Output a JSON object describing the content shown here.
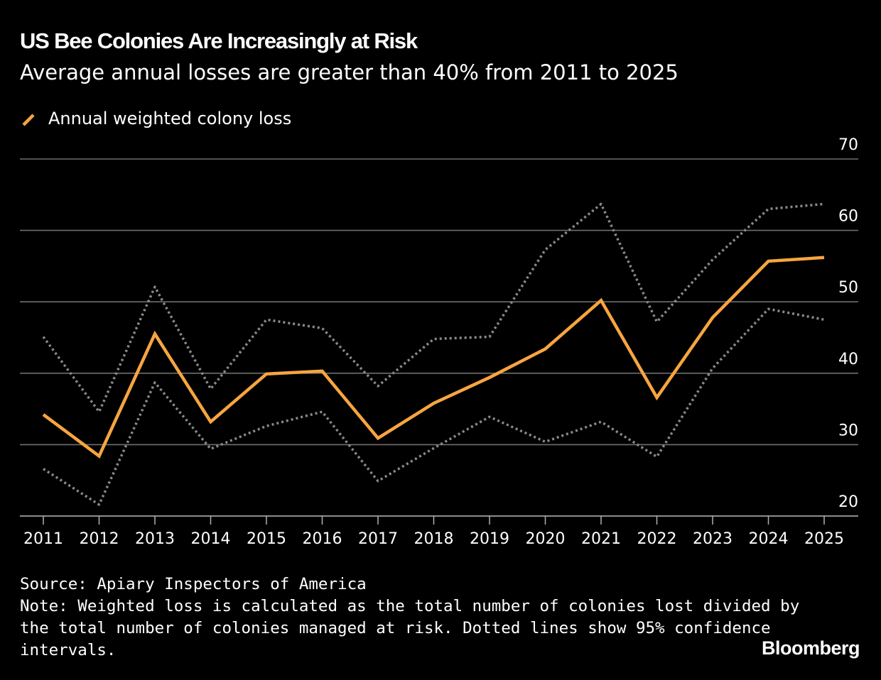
{
  "header": {
    "title": "US Bee Colonies Are Increasingly at Risk",
    "subtitle": "Average annual losses are greater than 40% from 2011 to 2025"
  },
  "legend": {
    "label": "Annual weighted colony loss"
  },
  "colors": {
    "background": "#000000",
    "main_series": "#f7a540",
    "ci_series": "#8a8a8a",
    "gridline": "#6e6e6e",
    "text": "#ffffff"
  },
  "chart_data": {
    "type": "line",
    "title": "US Bee Colonies Are Increasingly at Risk",
    "subtitle": "Average annual losses are greater than 40% from 2011 to 2025",
    "xlabel": "",
    "ylabel": "",
    "x": [
      2011,
      2012,
      2013,
      2014,
      2015,
      2016,
      2017,
      2018,
      2019,
      2020,
      2021,
      2022,
      2023,
      2024,
      2025
    ],
    "ylim": [
      20,
      70
    ],
    "yticks": [
      20,
      30,
      40,
      50,
      60,
      70
    ],
    "y_axis_side": "right",
    "grid": true,
    "legend_position": "top-left",
    "series": [
      {
        "name": "Annual weighted colony loss",
        "style": "solid",
        "values": [
          34.2,
          28.4,
          45.5,
          33.2,
          39.9,
          40.3,
          30.9,
          35.8,
          39.4,
          43.4,
          50.2,
          36.6,
          47.8,
          55.7,
          56.2
        ]
      },
      {
        "name": "Upper 95% confidence interval",
        "style": "dotted",
        "values": [
          45.1,
          34.6,
          52.1,
          37.8,
          47.5,
          46.3,
          38.2,
          44.8,
          45.1,
          57.3,
          63.7,
          47.2,
          55.9,
          63.0,
          63.7
        ]
      },
      {
        "name": "Lower 95% confidence interval",
        "style": "dotted",
        "values": [
          26.6,
          21.6,
          38.7,
          29.4,
          32.6,
          34.6,
          24.9,
          29.5,
          33.9,
          30.4,
          33.2,
          28.3,
          40.7,
          49.0,
          47.5
        ]
      }
    ]
  },
  "footer": {
    "source": "Source: Apiary Inspectors of America",
    "note_lines": [
      "Note: Weighted loss is calculated as the total number of colonies lost divided by",
      "the total number of colonies managed at risk. Dotted lines show 95% confidence",
      "intervals."
    ],
    "brand": "Bloomberg"
  }
}
